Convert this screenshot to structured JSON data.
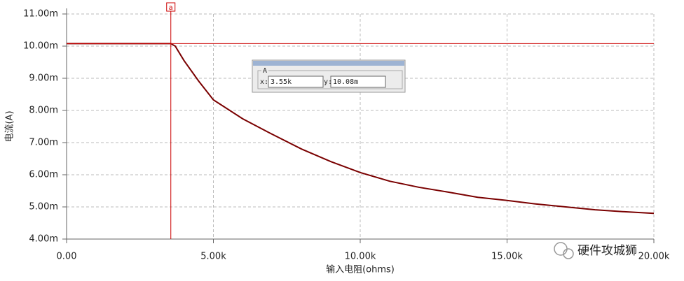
{
  "chart_data": {
    "type": "line",
    "y_label": "电流(A)",
    "x_label": "输入电阻(ohms)",
    "x": [
      0,
      3550,
      3700,
      4000,
      4500,
      5000,
      6000,
      7000,
      8000,
      9000,
      10000,
      11000,
      12000,
      13000,
      14000,
      15000,
      16000,
      17000,
      18000,
      19000,
      20000
    ],
    "values": [
      0.01008,
      0.01008,
      0.01,
      0.00955,
      0.00891,
      0.00833,
      0.00774,
      0.00726,
      0.0068,
      0.00641,
      0.00607,
      0.0058,
      0.00561,
      0.00546,
      0.0053,
      0.0052,
      0.00509,
      0.005,
      0.00491,
      0.00485,
      0.0048
    ],
    "color": "#7a0000",
    "xlim": [
      0,
      20000
    ],
    "xticks": [
      {
        "value": 0,
        "label": "0.00"
      },
      {
        "value": 5000,
        "label": "5.00k"
      },
      {
        "value": 10000,
        "label": "10.00k"
      },
      {
        "value": 15000,
        "label": "15.00k"
      },
      {
        "value": 20000,
        "label": "20.00k"
      }
    ],
    "ylim": [
      0.004,
      0.011
    ],
    "yticks": [
      {
        "value": 0.004,
        "label": "4.00m"
      },
      {
        "value": 0.005,
        "label": "5.00m"
      },
      {
        "value": 0.006,
        "label": "6.00m"
      },
      {
        "value": 0.007,
        "label": "7.00m"
      },
      {
        "value": 0.008,
        "label": "8.00m"
      },
      {
        "value": 0.009,
        "label": "9.00m"
      },
      {
        "value": 0.01,
        "label": "10.00m"
      },
      {
        "value": 0.011,
        "label": "11.00m"
      }
    ],
    "grid": true,
    "cursor": {
      "name": "a",
      "x": 3550,
      "y": 0.01008,
      "color": "#cc0000"
    }
  },
  "cursor_panel": {
    "title": "A",
    "x_label": "x:",
    "x_value": "3.55k",
    "y_label": "y:",
    "y_value": "10.08m"
  },
  "watermark": "硬件攻城狮"
}
